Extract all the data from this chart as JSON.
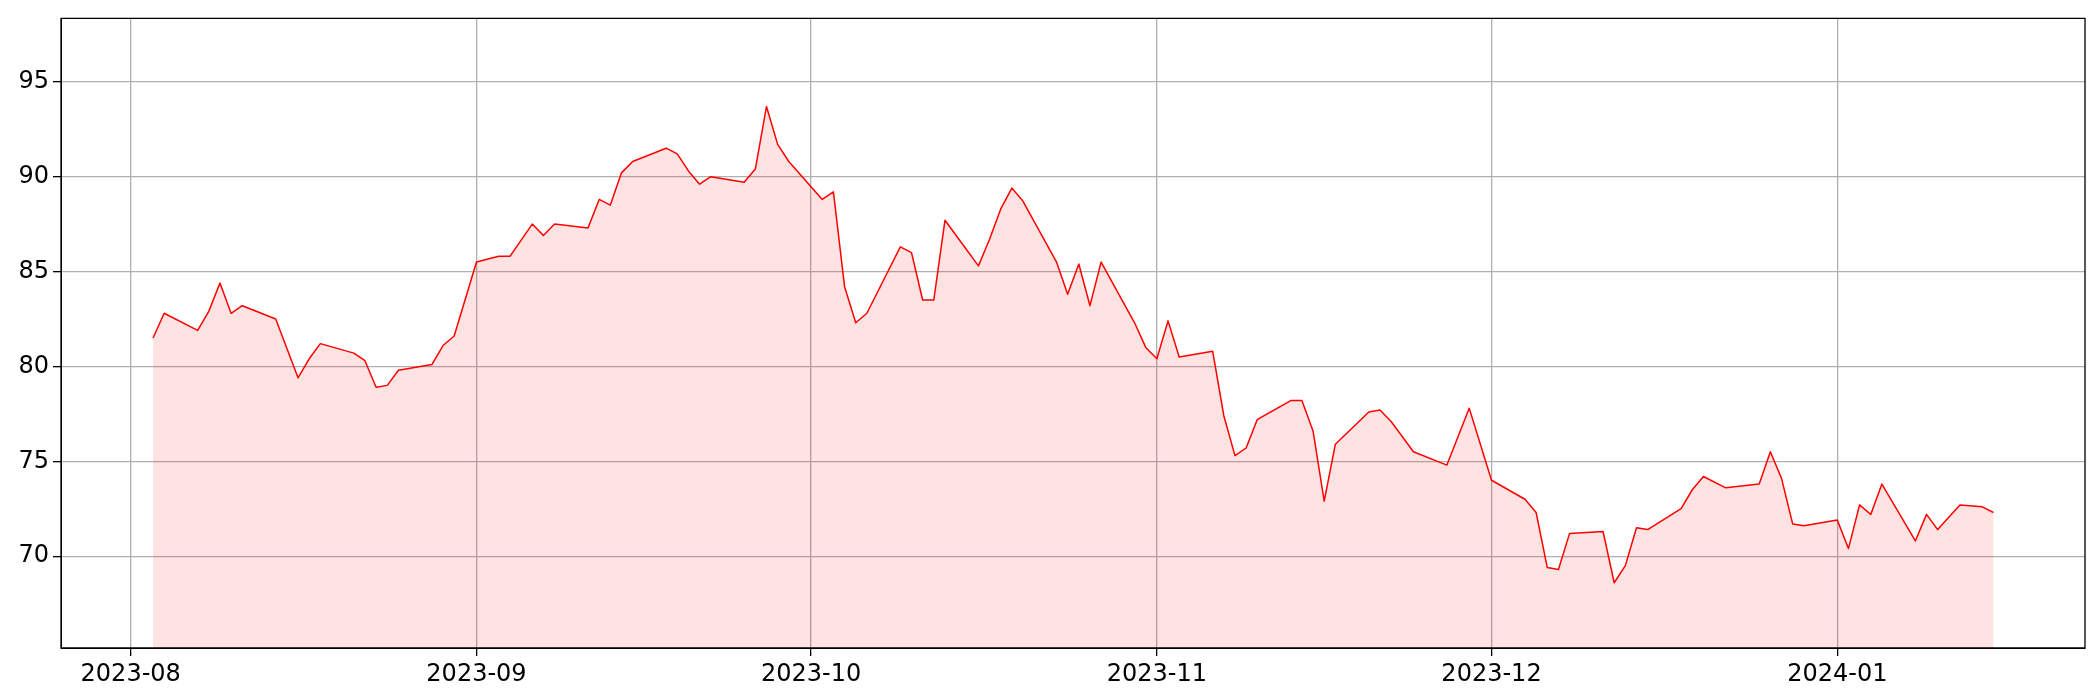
{
  "chart_data": {
    "type": "area",
    "x": [
      "2023-08-03",
      "2023-08-04",
      "2023-08-07",
      "2023-08-08",
      "2023-08-09",
      "2023-08-10",
      "2023-08-11",
      "2023-08-14",
      "2023-08-16",
      "2023-08-17",
      "2023-08-18",
      "2023-08-21",
      "2023-08-22",
      "2023-08-23",
      "2023-08-24",
      "2023-08-25",
      "2023-08-28",
      "2023-08-29",
      "2023-08-30",
      "2023-09-01",
      "2023-09-03",
      "2023-09-04",
      "2023-09-06",
      "2023-09-07",
      "2023-09-08",
      "2023-09-11",
      "2023-09-12",
      "2023-09-13",
      "2023-09-14",
      "2023-09-15",
      "2023-09-18",
      "2023-09-19",
      "2023-09-20",
      "2023-09-21",
      "2023-09-22",
      "2023-09-25",
      "2023-09-26",
      "2023-09-27",
      "2023-09-28",
      "2023-09-29",
      "2023-10-02",
      "2023-10-03",
      "2023-10-04",
      "2023-10-05",
      "2023-10-06",
      "2023-10-09",
      "2023-10-10",
      "2023-10-11",
      "2023-10-12",
      "2023-10-13",
      "2023-10-16",
      "2023-10-17",
      "2023-10-18",
      "2023-10-19",
      "2023-10-20",
      "2023-10-23",
      "2023-10-24",
      "2023-10-25",
      "2023-10-26",
      "2023-10-27",
      "2023-10-30",
      "2023-10-31",
      "2023-11-01",
      "2023-11-02",
      "2023-11-03",
      "2023-11-06",
      "2023-11-07",
      "2023-11-08",
      "2023-11-09",
      "2023-11-10",
      "2023-11-13",
      "2023-11-14",
      "2023-11-15",
      "2023-11-16",
      "2023-11-17",
      "2023-11-20",
      "2023-11-21",
      "2023-11-22",
      "2023-11-24",
      "2023-11-27",
      "2023-11-29",
      "2023-12-01",
      "2023-12-04",
      "2023-12-05",
      "2023-12-06",
      "2023-12-07",
      "2023-12-08",
      "2023-12-11",
      "2023-12-12",
      "2023-12-13",
      "2023-12-14",
      "2023-12-15",
      "2023-12-18",
      "2023-12-19",
      "2023-12-20",
      "2023-12-22",
      "2023-12-25",
      "2023-12-26",
      "2023-12-27",
      "2023-12-28",
      "2023-12-29",
      "2024-01-01",
      "2024-01-02",
      "2024-01-03",
      "2024-01-04",
      "2024-01-05",
      "2024-01-08",
      "2024-01-09",
      "2024-01-10",
      "2024-01-12",
      "2024-01-14",
      "2024-01-15"
    ],
    "series": [
      {
        "color": "#ff0000",
        "values": [
          81.5,
          82.8,
          81.9,
          82.9,
          84.4,
          82.8,
          83.2,
          82.5,
          79.4,
          80.4,
          81.2,
          80.7,
          80.3,
          78.9,
          79.0,
          79.8,
          80.1,
          81.1,
          81.6,
          85.5,
          85.8,
          85.8,
          87.5,
          86.9,
          87.5,
          87.3,
          88.8,
          88.5,
          90.2,
          90.8,
          91.5,
          91.2,
          90.3,
          89.6,
          90.0,
          89.7,
          90.4,
          93.7,
          91.7,
          90.8,
          88.8,
          89.2,
          84.2,
          82.3,
          82.8,
          86.3,
          86.0,
          83.5,
          83.5,
          87.7,
          85.3,
          86.7,
          88.3,
          89.4,
          88.7,
          85.5,
          83.8,
          85.4,
          83.2,
          85.5,
          82.3,
          81.0,
          80.4,
          82.4,
          80.5,
          80.8,
          77.4,
          75.3,
          75.7,
          77.2,
          78.2,
          78.2,
          76.6,
          72.9,
          75.9,
          77.6,
          77.7,
          77.1,
          75.5,
          74.8,
          77.8,
          74.0,
          73.0,
          72.3,
          69.4,
          69.3,
          71.2,
          71.3,
          68.6,
          69.5,
          71.5,
          71.4,
          72.5,
          73.5,
          74.2,
          73.6,
          73.8,
          75.5,
          74.1,
          71.7,
          71.6,
          71.9,
          70.4,
          72.7,
          72.2,
          73.8,
          70.8,
          72.2,
          71.4,
          72.7,
          72.6,
          72.3
        ]
      }
    ],
    "xlim": [
      "2023-07-25T18:00",
      "2024-01-23T05:00"
    ],
    "xticks": [
      "2023-08",
      "2023-09",
      "2023-10",
      "2023-11",
      "2023-12",
      "2024-01"
    ],
    "ylim": [
      65.16,
      98.34
    ],
    "yticks": [
      70,
      75,
      80,
      85,
      90,
      95
    ],
    "grid": true,
    "legend": false,
    "marker": "none",
    "line_style": "solid"
  }
}
